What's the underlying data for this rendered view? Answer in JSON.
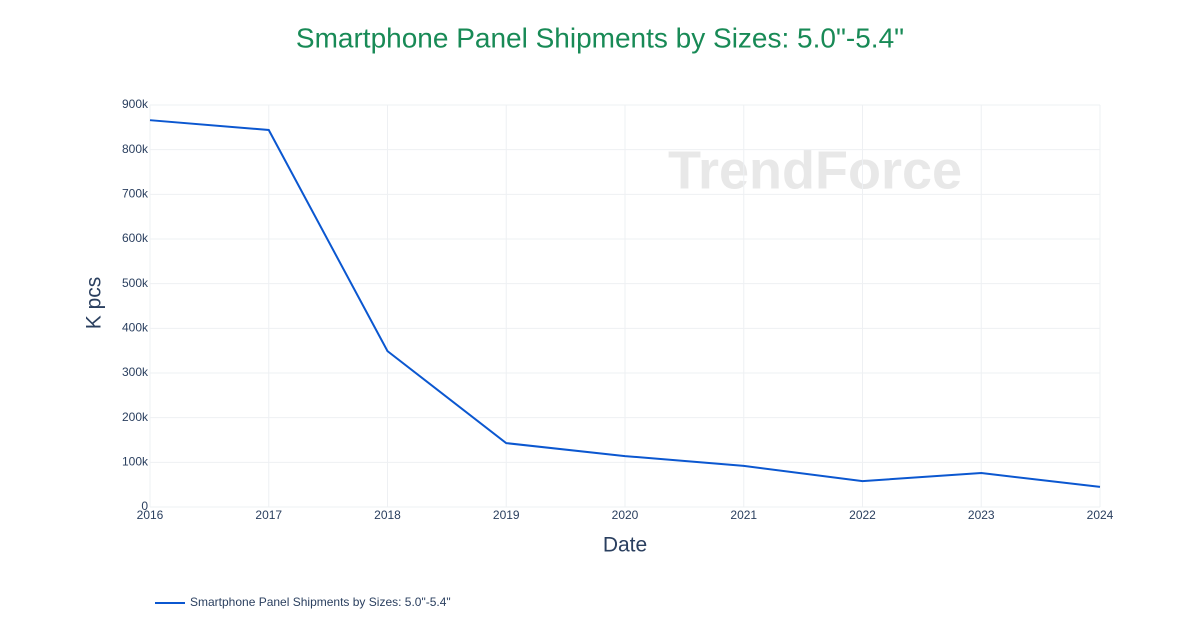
{
  "chart_data": {
    "type": "line",
    "title": "Smartphone Panel Shipments by Sizes: 5.0\"-5.4\"",
    "watermark": "TrendForce",
    "x_label": "Date",
    "y_label": "K pcs",
    "x": [
      2016,
      2017,
      2018,
      2019,
      2020,
      2021,
      2022,
      2023,
      2024
    ],
    "series": [
      {
        "name": "Smartphone Panel Shipments by Sizes: 5.0\"-5.4\"",
        "color": "#0b57d0",
        "values": [
          866000,
          844000,
          349000,
          143000,
          114000,
          92000,
          58000,
          76000,
          45000
        ]
      }
    ],
    "xlim": [
      2016,
      2024
    ],
    "xticks": [
      2016,
      2017,
      2018,
      2019,
      2020,
      2021,
      2022,
      2023,
      2024
    ],
    "ylim": [
      0,
      900000
    ],
    "yticks": [
      0,
      {
        "value": 100000,
        "label": "100k"
      },
      {
        "value": 200000,
        "label": "200k"
      },
      {
        "value": 300000,
        "label": "300k"
      },
      {
        "value": 400000,
        "label": "400k"
      },
      {
        "value": 500000,
        "label": "500k"
      },
      {
        "value": 600000,
        "label": "600k"
      },
      {
        "value": 700000,
        "label": "700k"
      },
      {
        "value": 800000,
        "label": "800k"
      },
      {
        "value": 900000,
        "label": "900k"
      }
    ],
    "grid": true,
    "legend": "bottom-left"
  }
}
